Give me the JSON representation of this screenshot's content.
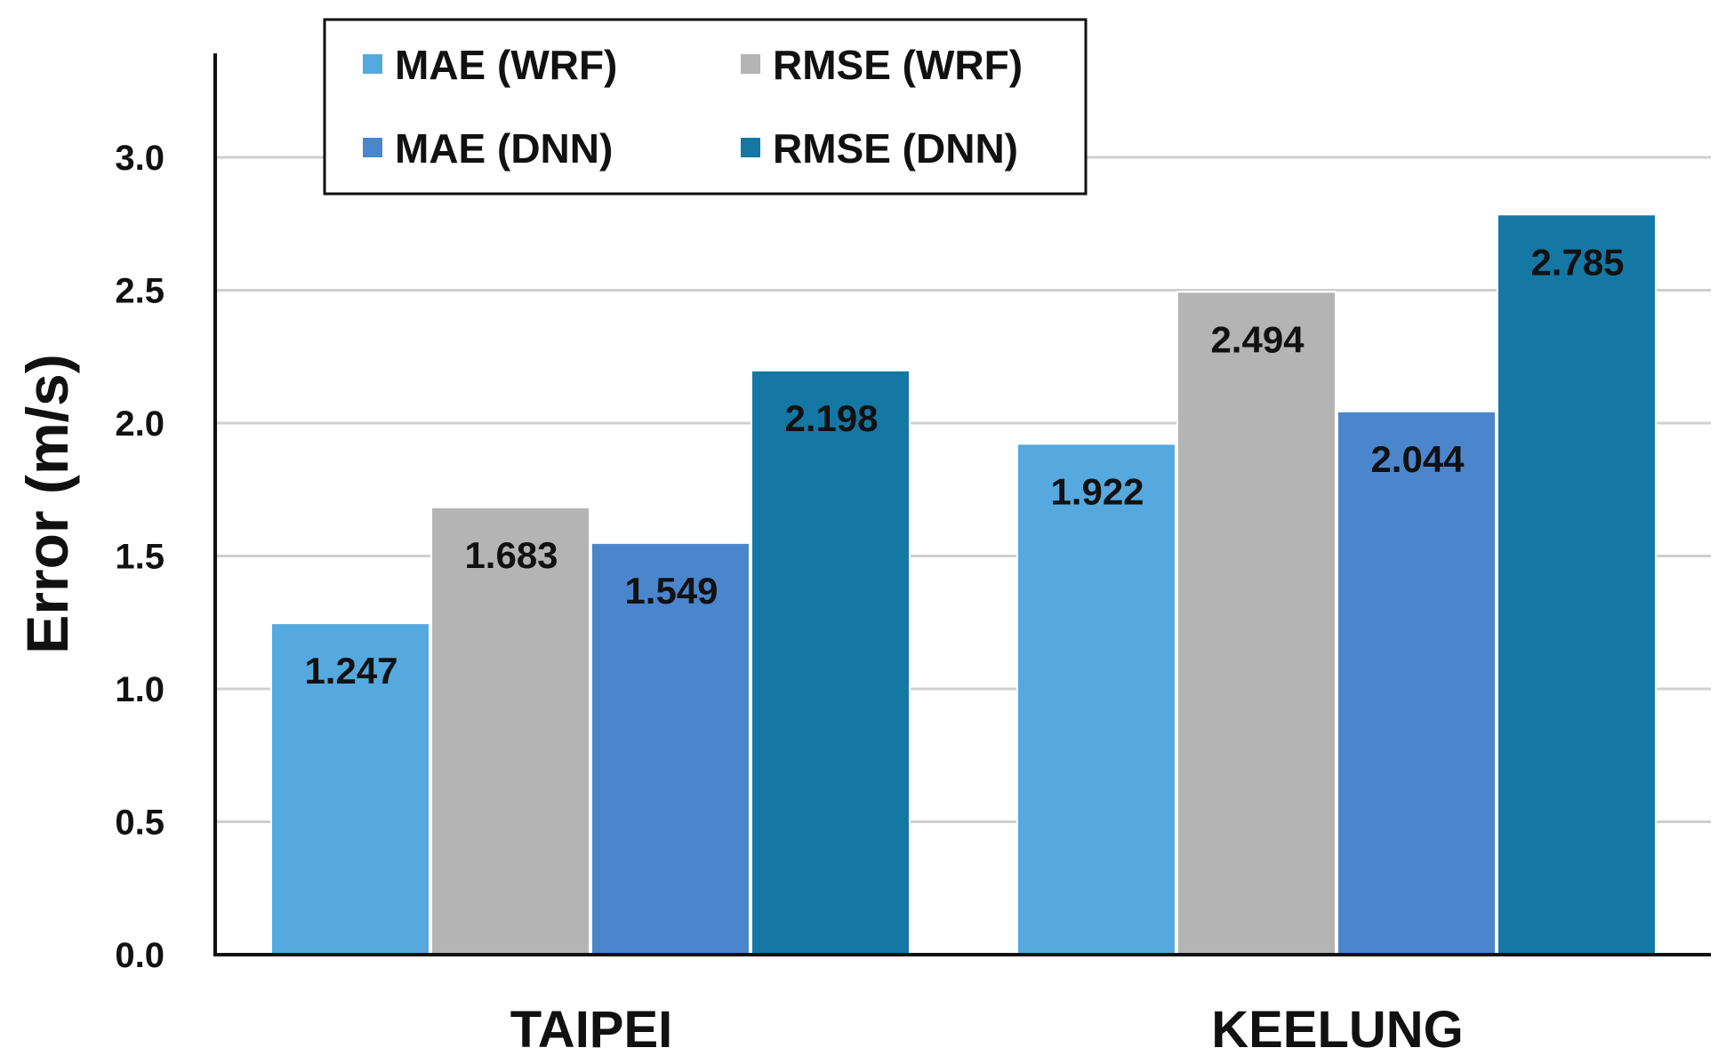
{
  "chart_data": {
    "type": "bar",
    "ylabel": "Error (m/s)",
    "xlabel": "",
    "categories": [
      "TAIPEI",
      "KEELUNG"
    ],
    "ylim": [
      0,
      3.25
    ],
    "yticks": [
      "0.0",
      "0.5",
      "1.0",
      "1.5",
      "2.0",
      "2.5",
      "3.0"
    ],
    "grid": true,
    "legend_position": "top-left",
    "series": [
      {
        "name": "MAE (WRF)",
        "color": "#55a9de",
        "values": [
          1.247,
          1.922
        ],
        "labels": [
          "1.247",
          "1.922"
        ]
      },
      {
        "name": "RMSE (WRF)",
        "color": "#b4b4b4",
        "values": [
          1.683,
          2.494
        ],
        "labels": [
          "1.683",
          "2.494"
        ]
      },
      {
        "name": "MAE (DNN)",
        "color": "#4b86cc",
        "values": [
          1.549,
          2.044
        ],
        "labels": [
          "1.549",
          "2.044"
        ]
      },
      {
        "name": "RMSE (DNN)",
        "color": "#1577a3",
        "values": [
          2.198,
          2.785
        ],
        "labels": [
          "2.198",
          "2.785"
        ]
      }
    ]
  }
}
